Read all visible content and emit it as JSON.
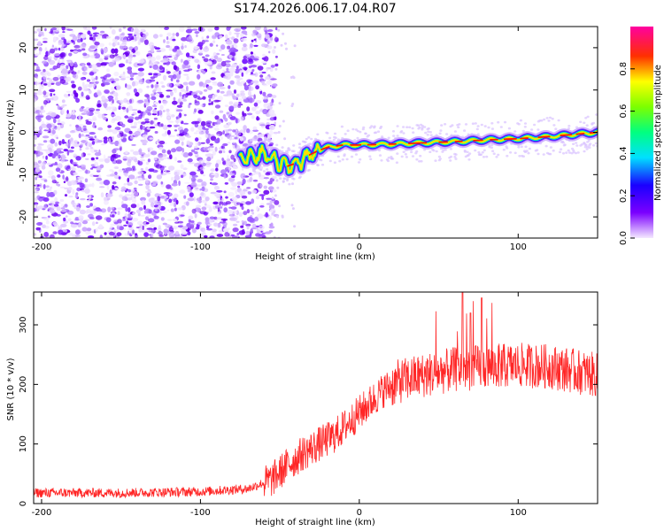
{
  "chart_data": [
    {
      "type": "heatmap",
      "title": "S174.2026.006.17.04.R07",
      "xlabel": "Height of straight line (km)",
      "ylabel": "Frequency (Hz)",
      "xlim": [
        -205,
        150
      ],
      "ylim": [
        -25,
        25
      ],
      "xticks": [
        -200,
        -100,
        0,
        100
      ],
      "yticks": [
        -20,
        -10,
        0,
        10,
        20
      ],
      "noise_region_x": [
        -205,
        -60
      ],
      "ridge_points": [
        {
          "x": -70,
          "y": -6
        },
        {
          "x": -60,
          "y": -5
        },
        {
          "x": -52,
          "y": -7
        },
        {
          "x": -45,
          "y": -8
        },
        {
          "x": -38,
          "y": -7
        },
        {
          "x": -30,
          "y": -5
        },
        {
          "x": -20,
          "y": -3.5
        },
        {
          "x": -10,
          "y": -3
        },
        {
          "x": 0,
          "y": -3
        },
        {
          "x": 20,
          "y": -2.8
        },
        {
          "x": 40,
          "y": -2.5
        },
        {
          "x": 60,
          "y": -2.2
        },
        {
          "x": 80,
          "y": -1.8
        },
        {
          "x": 100,
          "y": -1.5
        },
        {
          "x": 120,
          "y": -1
        },
        {
          "x": 150,
          "y": 0
        }
      ],
      "colorbar": {
        "label": "Normalized spectral amplitude",
        "range": [
          0,
          1
        ],
        "ticks": [
          "0.0",
          "0.2",
          "0.4",
          "0.6",
          "0.8"
        ]
      }
    },
    {
      "type": "line",
      "xlabel": "Height of straight line (km)",
      "ylabel": "SNR (10 * v/v)",
      "xlim": [
        -205,
        150
      ],
      "ylim": [
        0,
        355
      ],
      "xticks": [
        -200,
        -100,
        0,
        100
      ],
      "yticks": [
        0,
        100,
        200,
        300
      ],
      "line_color": "#ff0000",
      "trend": [
        {
          "x": -205,
          "y": 18
        },
        {
          "x": -150,
          "y": 18
        },
        {
          "x": -100,
          "y": 20
        },
        {
          "x": -70,
          "y": 25
        },
        {
          "x": -55,
          "y": 40
        },
        {
          "x": -45,
          "y": 65
        },
        {
          "x": -35,
          "y": 85
        },
        {
          "x": -25,
          "y": 100
        },
        {
          "x": -15,
          "y": 115
        },
        {
          "x": -5,
          "y": 140
        },
        {
          "x": 5,
          "y": 165
        },
        {
          "x": 15,
          "y": 190
        },
        {
          "x": 25,
          "y": 205
        },
        {
          "x": 40,
          "y": 215
        },
        {
          "x": 60,
          "y": 225
        },
        {
          "x": 80,
          "y": 230
        },
        {
          "x": 100,
          "y": 232
        },
        {
          "x": 120,
          "y": 230
        },
        {
          "x": 150,
          "y": 215
        }
      ],
      "peaks": [
        {
          "x": 65,
          "y": 355
        },
        {
          "x": 77,
          "y": 345
        },
        {
          "x": 70,
          "y": 320
        }
      ]
    }
  ]
}
